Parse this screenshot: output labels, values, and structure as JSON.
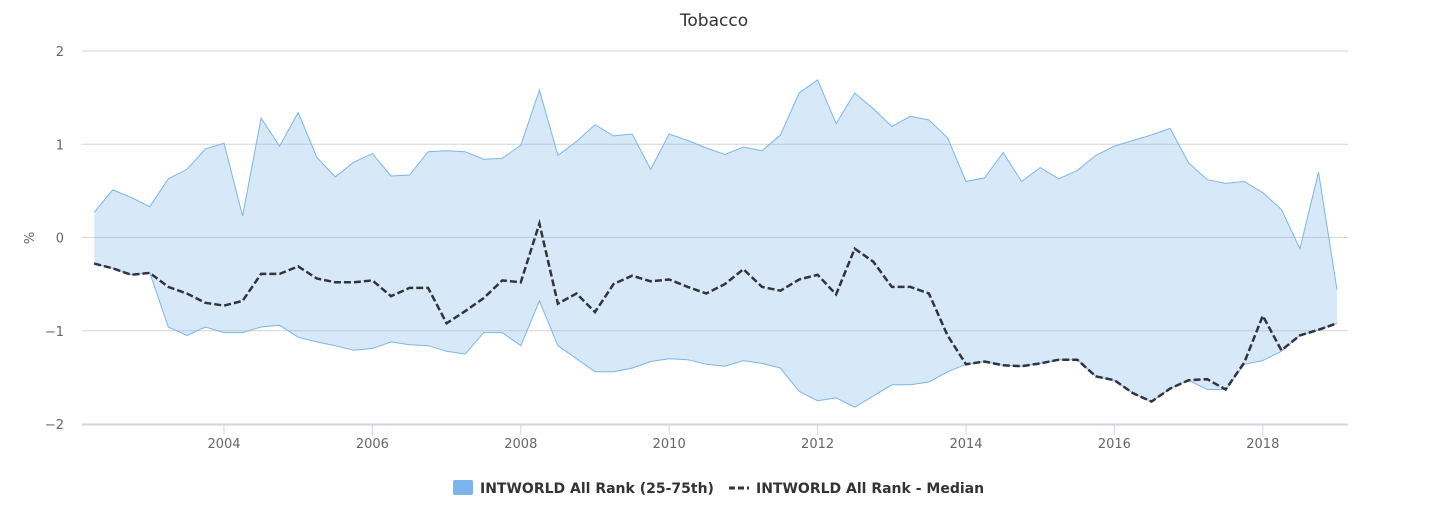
{
  "chart_data": {
    "type": "area",
    "title": "Tobacco",
    "xlabel": "",
    "ylabel": "%",
    "xlim": [
      2002.2,
      2019.2
    ],
    "ylim": [
      -2,
      2
    ],
    "x_ticks": [
      "2004",
      "2006",
      "2008",
      "2010",
      "2012",
      "2014",
      "2016",
      "2018"
    ],
    "y_ticks": [
      "2",
      "1",
      "0",
      "−1",
      "−2"
    ],
    "grid": true,
    "legend_position": "bottom",
    "x": [
      2002.25,
      2002.5,
      2002.75,
      2003.0,
      2003.25,
      2003.5,
      2003.75,
      2004.0,
      2004.25,
      2004.5,
      2004.75,
      2005.0,
      2005.25,
      2005.5,
      2005.75,
      2006.0,
      2006.25,
      2006.5,
      2006.75,
      2007.0,
      2007.25,
      2007.5,
      2007.75,
      2008.0,
      2008.25,
      2008.5,
      2008.75,
      2009.0,
      2009.25,
      2009.5,
      2009.75,
      2010.0,
      2010.25,
      2010.5,
      2010.75,
      2011.0,
      2011.25,
      2011.5,
      2011.75,
      2012.0,
      2012.25,
      2012.5,
      2012.75,
      2013.0,
      2013.25,
      2013.5,
      2013.75,
      2014.0,
      2014.25,
      2014.5,
      2014.75,
      2015.0,
      2015.25,
      2015.5,
      2015.75,
      2016.0,
      2016.25,
      2016.5,
      2016.75,
      2017.0,
      2017.25,
      2017.5,
      2017.75,
      2018.0,
      2018.25,
      2018.5,
      2018.75,
      2019.0
    ],
    "series": [
      {
        "name": "INTWORLD All Rank (25-75th)",
        "type": "band",
        "color": "#7cb5ec",
        "upper": [
          0.27,
          0.51,
          0.43,
          0.33,
          0.63,
          0.73,
          0.95,
          1.01,
          0.23,
          1.28,
          0.98,
          1.34,
          0.86,
          0.65,
          0.81,
          0.9,
          0.66,
          0.67,
          0.92,
          0.93,
          0.92,
          0.84,
          0.85,
          0.99,
          1.58,
          0.88,
          1.03,
          1.21,
          1.09,
          1.11,
          0.73,
          1.11,
          1.04,
          0.96,
          0.89,
          0.97,
          0.93,
          1.1,
          1.55,
          1.69,
          1.22,
          1.55,
          1.38,
          1.19,
          1.3,
          1.26,
          1.07,
          0.6,
          0.64,
          0.91,
          0.6,
          0.75,
          0.63,
          0.72,
          0.88,
          0.98,
          1.04,
          1.1,
          1.17,
          0.8,
          0.62,
          0.58,
          0.6,
          0.48,
          0.3,
          -0.12,
          0.7,
          -0.56
        ],
        "lower": [
          -0.28,
          -0.33,
          -0.4,
          -0.38,
          -0.96,
          -1.05,
          -0.96,
          -1.02,
          -1.02,
          -0.96,
          -0.94,
          -1.07,
          -1.12,
          -1.16,
          -1.21,
          -1.19,
          -1.12,
          -1.15,
          -1.16,
          -1.22,
          -1.25,
          -1.02,
          -1.02,
          -1.16,
          -0.68,
          -1.16,
          -1.3,
          -1.44,
          -1.44,
          -1.4,
          -1.33,
          -1.3,
          -1.31,
          -1.36,
          -1.38,
          -1.32,
          -1.35,
          -1.4,
          -1.65,
          -1.75,
          -1.72,
          -1.82,
          -1.7,
          -1.58,
          -1.58,
          -1.55,
          -1.44,
          -1.36,
          -1.33,
          -1.37,
          -1.38,
          -1.35,
          -1.31,
          -1.31,
          -1.49,
          -1.53,
          -1.67,
          -1.76,
          -1.62,
          -1.53,
          -1.63,
          -1.63,
          -1.36,
          -1.32,
          -1.22,
          -1.05,
          -0.99,
          -0.92
        ]
      },
      {
        "name": "INTWORLD All Rank - Median",
        "type": "line",
        "dash": true,
        "color": "#333340",
        "values": [
          -0.28,
          -0.33,
          -0.4,
          -0.38,
          -0.53,
          -0.6,
          -0.7,
          -0.73,
          -0.68,
          -0.39,
          -0.39,
          -0.31,
          -0.44,
          -0.48,
          -0.48,
          -0.46,
          -0.63,
          -0.54,
          -0.54,
          -0.92,
          -0.79,
          -0.65,
          -0.46,
          -0.48,
          0.15,
          -0.71,
          -0.6,
          -0.8,
          -0.5,
          -0.41,
          -0.47,
          -0.45,
          -0.53,
          -0.6,
          -0.5,
          -0.34,
          -0.53,
          -0.57,
          -0.45,
          -0.4,
          -0.61,
          -0.12,
          -0.26,
          -0.53,
          -0.53,
          -0.6,
          -1.05,
          -1.36,
          -1.33,
          -1.37,
          -1.38,
          -1.35,
          -1.31,
          -1.31,
          -1.49,
          -1.53,
          -1.67,
          -1.76,
          -1.62,
          -1.53,
          -1.52,
          -1.63,
          -1.34,
          -0.84,
          -1.21,
          -1.05,
          -0.99,
          -0.92
        ]
      }
    ]
  }
}
